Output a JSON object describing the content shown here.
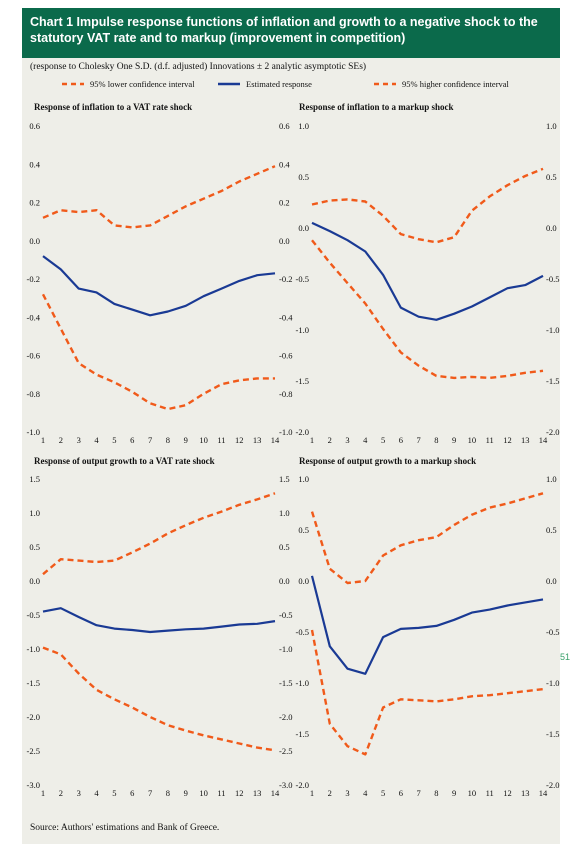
{
  "header": {
    "title": "Chart 1 Impulse response functions of inflation and growth to a negative shock to the statutory VAT rate and to markup (improvement in competition)",
    "subtitle": "(response to Cholesky One S.D. (d.f. adjusted) Innovations ± 2 analytic asymptotic SEs)"
  },
  "legend": {
    "lower": "95% lower confidence interval",
    "estimated": "Estimated response",
    "higher": "95% higher confidence interval"
  },
  "colors": {
    "title_bg": "#0b6a4b",
    "panel_bg": "#eeeee8",
    "estimate": "#1a3a94",
    "confidence": "#f05a1a"
  },
  "source": "Source: Authors' estimations and Bank of Greece.",
  "side_mark": "51",
  "chart_data": [
    {
      "type": "line",
      "title": "Response of inflation to a VAT rate shock",
      "x": [
        1,
        2,
        3,
        4,
        5,
        6,
        7,
        8,
        9,
        10,
        11,
        12,
        13,
        14
      ],
      "ylim": [
        -1.0,
        0.6
      ],
      "yticks": [
        "0.6",
        "0.4",
        "0.2",
        "0.0",
        "-0.2",
        "-0.4",
        "-0.6",
        "-0.8",
        "-1.0"
      ],
      "series": [
        {
          "name": "95% higher confidence interval",
          "values": [
            0.12,
            0.16,
            0.15,
            0.16,
            0.08,
            0.07,
            0.08,
            0.13,
            0.18,
            0.22,
            0.26,
            0.31,
            0.35,
            0.39
          ]
        },
        {
          "name": "Estimated response",
          "values": [
            -0.08,
            -0.15,
            -0.25,
            -0.27,
            -0.33,
            -0.36,
            -0.39,
            -0.37,
            -0.34,
            -0.29,
            -0.25,
            -0.21,
            -0.18,
            -0.17
          ]
        },
        {
          "name": "95% lower confidence interval",
          "values": [
            -0.28,
            -0.46,
            -0.64,
            -0.7,
            -0.74,
            -0.79,
            -0.85,
            -0.88,
            -0.86,
            -0.8,
            -0.75,
            -0.73,
            -0.72,
            -0.72
          ]
        }
      ]
    },
    {
      "type": "line",
      "title": "Response of inflation to a markup shock",
      "x": [
        1,
        2,
        3,
        4,
        5,
        6,
        7,
        8,
        9,
        10,
        11,
        12,
        13,
        14
      ],
      "ylim": [
        -2.0,
        1.0
      ],
      "yticks": [
        "1.0",
        "0.5",
        "0.0",
        "-0.5",
        "-1.0",
        "-1.5",
        "-2.0"
      ],
      "series": [
        {
          "name": "95% higher confidence interval",
          "values": [
            0.23,
            0.27,
            0.28,
            0.26,
            0.12,
            -0.06,
            -0.11,
            -0.14,
            -0.09,
            0.17,
            0.31,
            0.42,
            0.51,
            0.58
          ]
        },
        {
          "name": "Estimated response",
          "values": [
            0.05,
            -0.03,
            -0.12,
            -0.23,
            -0.46,
            -0.78,
            -0.87,
            -0.9,
            -0.84,
            -0.77,
            -0.68,
            -0.59,
            -0.56,
            -0.47
          ]
        },
        {
          "name": "95% lower confidence interval",
          "values": [
            -0.12,
            -0.34,
            -0.54,
            -0.74,
            -0.99,
            -1.22,
            -1.35,
            -1.45,
            -1.47,
            -1.46,
            -1.47,
            -1.45,
            -1.42,
            -1.4
          ]
        }
      ]
    },
    {
      "type": "line",
      "title": "Response of output growth to a VAT rate shock",
      "x": [
        1,
        2,
        3,
        4,
        5,
        6,
        7,
        8,
        9,
        10,
        11,
        12,
        13,
        14
      ],
      "ylim": [
        -3.0,
        1.5
      ],
      "yticks": [
        "1.5",
        "1.0",
        "0.5",
        "0.0",
        "-0.5",
        "-1.0",
        "-1.5",
        "-2.0",
        "-2.5",
        "-3.0"
      ],
      "series": [
        {
          "name": "95% higher confidence interval",
          "values": [
            0.1,
            0.32,
            0.3,
            0.28,
            0.3,
            0.42,
            0.55,
            0.7,
            0.82,
            0.93,
            1.02,
            1.12,
            1.2,
            1.29
          ]
        },
        {
          "name": "Estimated response",
          "values": [
            -0.45,
            -0.4,
            -0.53,
            -0.65,
            -0.7,
            -0.72,
            -0.75,
            -0.73,
            -0.71,
            -0.7,
            -0.67,
            -0.64,
            -0.63,
            -0.59
          ]
        },
        {
          "name": "95% lower confidence interval",
          "values": [
            -0.98,
            -1.08,
            -1.36,
            -1.6,
            -1.74,
            -1.86,
            -2.0,
            -2.12,
            -2.2,
            -2.27,
            -2.33,
            -2.39,
            -2.45,
            -2.49
          ]
        }
      ]
    },
    {
      "type": "line",
      "title": "Response of output growth to a markup shock",
      "x": [
        1,
        2,
        3,
        4,
        5,
        6,
        7,
        8,
        9,
        10,
        11,
        12,
        13,
        14
      ],
      "ylim": [
        -2.0,
        1.0
      ],
      "yticks": [
        "1.0",
        "0.5",
        "0.0",
        "-0.5",
        "-1.0",
        "-1.5",
        "-2.0"
      ],
      "series": [
        {
          "name": "95% higher confidence interval",
          "values": [
            0.68,
            0.12,
            -0.02,
            0.0,
            0.25,
            0.35,
            0.4,
            0.43,
            0.55,
            0.65,
            0.72,
            0.76,
            0.81,
            0.86
          ]
        },
        {
          "name": "Estimated response",
          "values": [
            0.05,
            -0.64,
            -0.86,
            -0.91,
            -0.55,
            -0.47,
            -0.46,
            -0.44,
            -0.38,
            -0.31,
            -0.28,
            -0.24,
            -0.21,
            -0.18
          ]
        },
        {
          "name": "95% lower confidence interval",
          "values": [
            -0.48,
            -1.4,
            -1.62,
            -1.7,
            -1.24,
            -1.16,
            -1.17,
            -1.18,
            -1.16,
            -1.13,
            -1.12,
            -1.1,
            -1.08,
            -1.06
          ]
        }
      ]
    }
  ]
}
